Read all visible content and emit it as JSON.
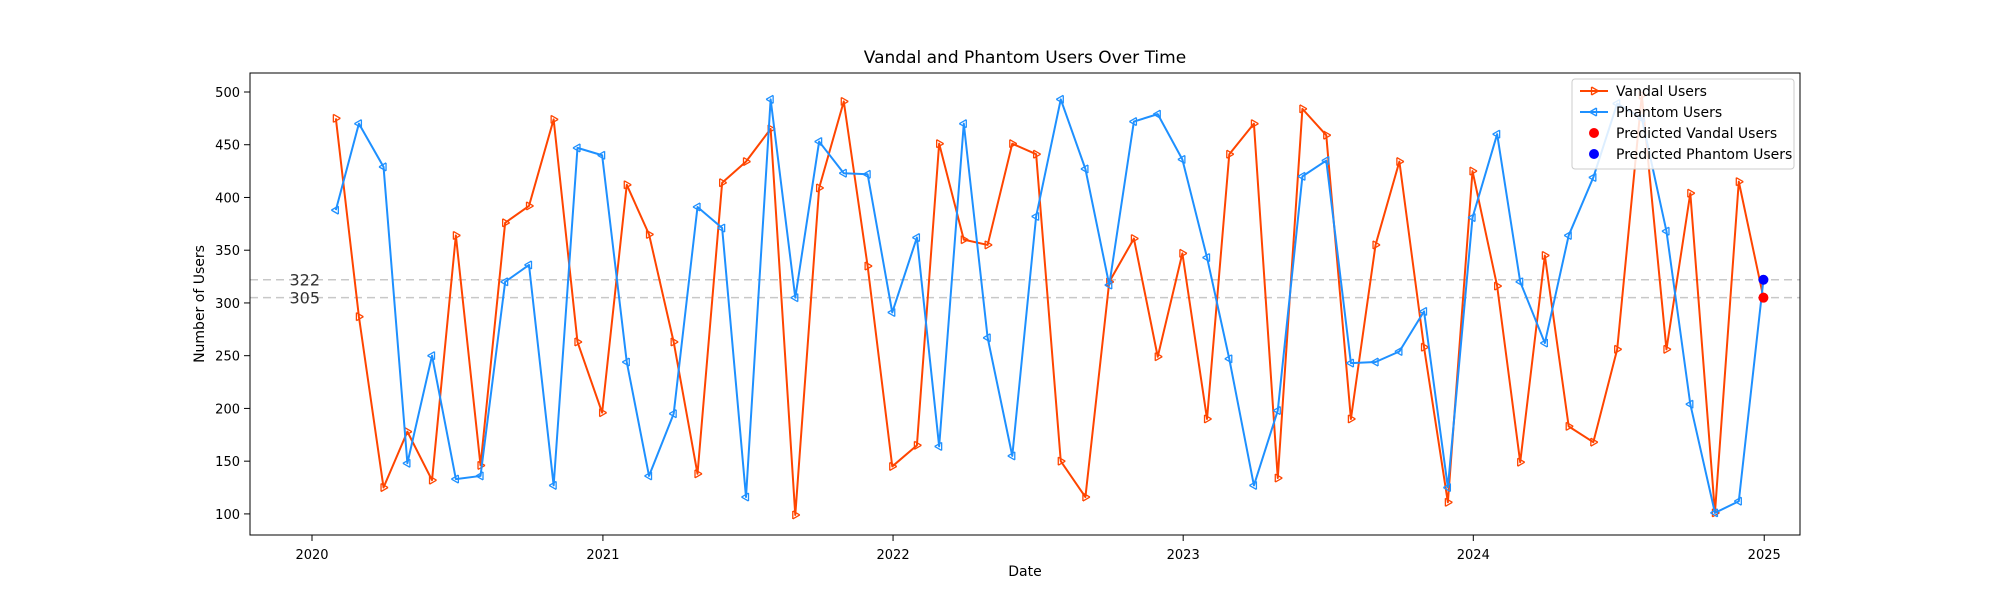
{
  "chart_data": {
    "type": "line",
    "title": "Vandal and Phantom Users Over Time",
    "xlabel": "Date",
    "ylabel": "Number of Users",
    "xlim": [
      "2019-10-15",
      "2025-02-15"
    ],
    "ylim": [
      80,
      518
    ],
    "x_ticks": [
      {
        "date": "2020-01-01",
        "label": "2020"
      },
      {
        "date": "2021-01-01",
        "label": "2021"
      },
      {
        "date": "2022-01-01",
        "label": "2022"
      },
      {
        "date": "2023-01-01",
        "label": "2023"
      },
      {
        "date": "2024-01-01",
        "label": "2024"
      },
      {
        "date": "2025-01-01",
        "label": "2025"
      }
    ],
    "y_ticks": [
      100,
      150,
      200,
      250,
      300,
      350,
      400,
      450,
      500
    ],
    "dates": [
      "2020-01-31",
      "2020-02-29",
      "2020-03-31",
      "2020-04-30",
      "2020-05-31",
      "2020-06-30",
      "2020-07-31",
      "2020-08-31",
      "2020-09-30",
      "2020-10-31",
      "2020-11-30",
      "2020-12-31",
      "2021-01-31",
      "2021-02-28",
      "2021-03-31",
      "2021-04-30",
      "2021-05-31",
      "2021-06-30",
      "2021-07-31",
      "2021-08-31",
      "2021-09-30",
      "2021-10-31",
      "2021-11-30",
      "2021-12-31",
      "2022-01-31",
      "2022-02-28",
      "2022-03-31",
      "2022-04-30",
      "2022-05-31",
      "2022-06-30",
      "2022-07-31",
      "2022-08-31",
      "2022-09-30",
      "2022-10-31",
      "2022-11-30",
      "2022-12-31",
      "2023-01-31",
      "2023-02-28",
      "2023-03-31",
      "2023-04-30",
      "2023-05-31",
      "2023-06-30",
      "2023-07-31",
      "2023-08-31",
      "2023-09-30",
      "2023-10-31",
      "2023-11-30",
      "2023-12-31",
      "2024-01-31",
      "2024-02-29",
      "2024-03-31",
      "2024-04-30",
      "2024-05-31",
      "2024-06-30",
      "2024-07-31",
      "2024-08-31",
      "2024-09-30",
      "2024-10-31",
      "2024-11-30",
      "2024-12-31"
    ],
    "series": [
      {
        "name": "Vandal Users",
        "color": "#ff4500",
        "marker": "tri-right",
        "values": [
          475,
          287,
          125,
          178,
          132,
          364,
          146,
          376,
          392,
          474,
          263,
          196,
          412,
          365,
          263,
          138,
          414,
          434,
          465,
          99,
          409,
          491,
          335,
          145,
          165,
          451,
          360,
          355,
          451,
          441,
          150,
          116,
          320,
          361,
          249,
          347,
          190,
          441,
          470,
          134,
          484,
          459,
          190,
          355,
          434,
          258,
          111,
          425,
          316,
          149,
          345,
          183,
          168,
          256,
          497,
          256,
          404,
          101,
          415,
          305
        ],
        "point_count": 59
      },
      {
        "name": "Phantom Users",
        "color": "#1e90ff",
        "marker": "tri-left",
        "values": [
          388,
          470,
          429,
          148,
          250,
          133,
          136,
          320,
          336,
          127,
          447,
          440,
          244,
          136,
          195,
          391,
          371,
          116,
          493,
          305,
          453,
          423,
          422,
          291,
          362,
          164,
          470,
          267,
          155,
          382,
          493,
          427,
          317,
          472,
          479,
          436,
          343,
          247,
          127,
          198,
          420,
          435,
          243,
          244,
          254,
          292,
          125,
          381,
          460,
          320,
          262,
          364,
          419,
          489,
          475,
          368,
          204,
          101,
          112,
          322
        ],
        "point_count": 59
      }
    ],
    "predictions": [
      {
        "name": "Predicted Vandal Users",
        "date": "2024-12-31",
        "value": 305,
        "color": "#ff0000",
        "label": "305"
      },
      {
        "name": "Predicted Phantom Users",
        "date": "2024-12-31",
        "value": 322,
        "color": "#0000ff",
        "label": "322"
      }
    ],
    "reference_lines": [
      322,
      305
    ],
    "grid": false,
    "legend_position": "top-right"
  }
}
